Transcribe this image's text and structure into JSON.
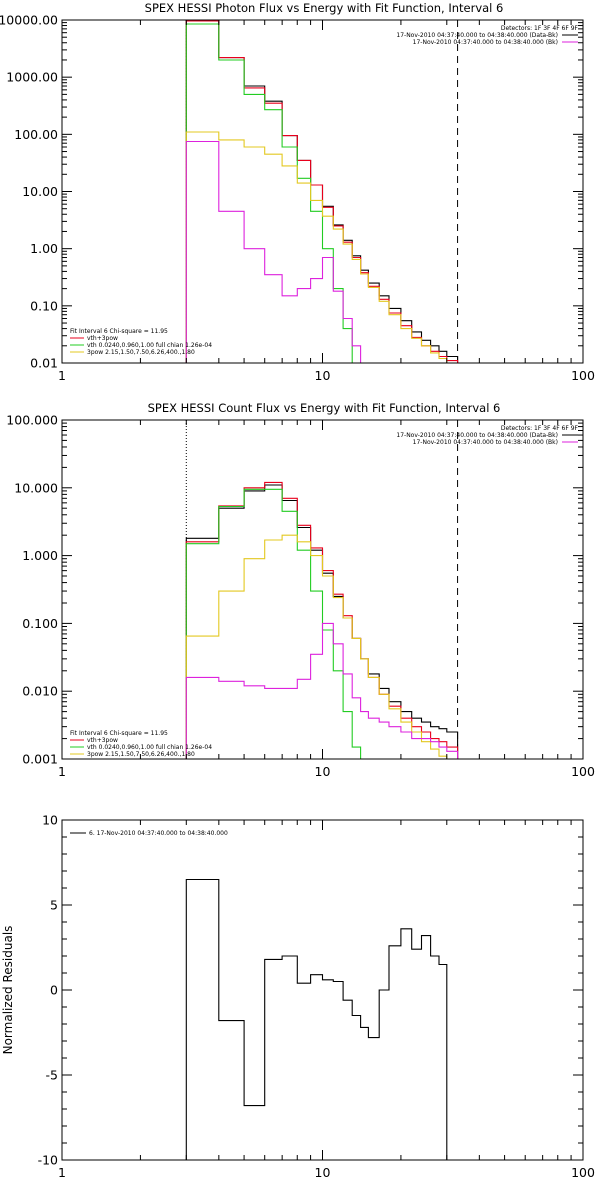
{
  "chart_data": [
    {
      "type": "line",
      "title": "SPEX HESSI Photon Flux vs Energy with Fit Function, Interval 6",
      "xscale": "log",
      "yscale": "log",
      "xlim": [
        1,
        100
      ],
      "ylim": [
        0.01,
        10000
      ],
      "xticks": [
        "1",
        "10",
        "100"
      ],
      "yticks": [
        "0.01",
        "0.10",
        "1.00",
        "10.00",
        "100.00",
        "1000.00",
        "10000.00"
      ],
      "edges": [
        3,
        4,
        5,
        6,
        7,
        8,
        9,
        10,
        11,
        12,
        13,
        14,
        15,
        16.5,
        18,
        20,
        22,
        24,
        26,
        28,
        30,
        33
      ],
      "legend_top": [
        "Detectors: 1F 3F 4F 6F 9F",
        "17-Nov-2010 04:37:40.000 to 04:38:40.000 (Data-Bk)",
        "17-Nov-2010 04:37:40.000 to 04:38:40.000 (Bk)"
      ],
      "legend_bottom": [
        "Fit Interval 6   Chi-square = 11.95",
        "vth+3pow",
        "vth 0.0240,0.960,1.00  full chian 1.26e-04",
        "3pow 2.15,1.50,7.50,6.26,400.,1.80"
      ],
      "vlines": {
        "dotted": 3,
        "dashed": 33
      },
      "series": [
        {
          "name": "17-Nov-2010 04:37:40.000 to 04:38:40.000 (Data-Bk)",
          "color": "#000000",
          "values": [
            10000,
            2200,
            700,
            380,
            95,
            35,
            13,
            5.5,
            2.6,
            1.4,
            0.75,
            0.42,
            0.25,
            0.15,
            0.09,
            0.055,
            0.035,
            0.025,
            0.02,
            0.016,
            0.013
          ]
        },
        {
          "name": "vth+3pow",
          "color": "#e8001c",
          "values": [
            9600,
            2200,
            650,
            350,
            95,
            35,
            13,
            5.3,
            2.5,
            1.3,
            0.7,
            0.38,
            0.22,
            0.13,
            0.075,
            0.045,
            0.028,
            0.02,
            0.016,
            0.013,
            0.011
          ]
        },
        {
          "name": "vth 0.0240,0.960,1.00  full chian 1.26e-04",
          "color": "#22cc22",
          "values": [
            8500,
            2000,
            500,
            270,
            60,
            17,
            4.5,
            1.0,
            0.2,
            0.04,
            0.01,
            null,
            null,
            null,
            null,
            null,
            null,
            null,
            null,
            null,
            null
          ]
        },
        {
          "name": "3pow 2.15,1.50,7.50,6.26,400.,1.80",
          "color": "#e3c820",
          "values": [
            110,
            80,
            60,
            45,
            28,
            14,
            7,
            3.7,
            2.2,
            1.2,
            0.65,
            0.36,
            0.21,
            0.12,
            0.07,
            0.04,
            0.027,
            0.02,
            0.015,
            0.012,
            0.009
          ]
        },
        {
          "name": "17-Nov-2010 04:37:40.000 to 04:38:40.000 (Bk)",
          "color": "#dd22dd",
          "values": [
            75,
            4.5,
            1.0,
            0.35,
            0.15,
            0.2,
            0.3,
            0.7,
            0.18,
            0.06,
            0.02,
            0.01,
            null,
            null,
            null,
            null,
            null,
            null,
            null,
            null,
            null
          ]
        }
      ]
    },
    {
      "type": "line",
      "title": "SPEX HESSI Count Flux vs Energy with Fit Function, Interval 6",
      "xscale": "log",
      "yscale": "log",
      "xlim": [
        1,
        100
      ],
      "ylim": [
        0.001,
        100
      ],
      "xticks": [
        "1",
        "10",
        "100"
      ],
      "yticks": [
        "0.001",
        "0.010",
        "0.100",
        "1.000",
        "10.000",
        "100.000"
      ],
      "edges": [
        3,
        4,
        5,
        6,
        7,
        8,
        9,
        10,
        11,
        12,
        13,
        14,
        15,
        16.5,
        18,
        20,
        22,
        24,
        26,
        28,
        30,
        33
      ],
      "legend_top": [
        "Detectors: 1F 3F 4F 6F 9F",
        "17-Nov-2010 04:37:40.000 to 04:38:40.000 (Data-Bk)",
        "17-Nov-2010 04:37:40.000 to 04:38:40.000 (Bk)"
      ],
      "legend_bottom": [
        "Fit Interval 6   Chi-square = 11.95",
        "vth+3pow",
        "vth 0.0240,0.960,1.00  full chian 1.26e-04",
        "3pow 2.15,1.50,7.50,6.26,400.,1.80"
      ],
      "vlines": {
        "dotted": 3,
        "dashed": 33
      },
      "series": [
        {
          "name": "17-Nov-2010 04:37:40.000 to 04:38:40.000 (Data-Bk)",
          "color": "#000000",
          "values": [
            1.8,
            5.0,
            9.0,
            11.0,
            6.5,
            2.6,
            1.2,
            0.55,
            0.25,
            0.12,
            0.06,
            0.03,
            0.018,
            0.011,
            0.007,
            0.005,
            0.004,
            0.0035,
            0.003,
            0.0028,
            0.0025
          ]
        },
        {
          "name": "vth+3pow",
          "color": "#e8001c",
          "values": [
            1.6,
            5.4,
            10.0,
            12.0,
            7.0,
            2.8,
            1.3,
            0.6,
            0.27,
            0.13,
            0.06,
            0.03,
            0.016,
            0.009,
            0.006,
            0.004,
            0.003,
            0.0025,
            0.002,
            0.0018,
            0.0015
          ]
        },
        {
          "name": "vth 0.0240,0.960,1.00  full chian 1.26e-04",
          "color": "#22cc22",
          "values": [
            1.5,
            5.3,
            9.5,
            9.5,
            4.5,
            1.2,
            0.3,
            0.08,
            0.02,
            0.005,
            0.0015,
            null,
            null,
            null,
            null,
            null,
            null,
            null,
            null,
            null,
            null
          ]
        },
        {
          "name": "3pow 2.15,1.50,7.50,6.26,400.,1.80",
          "color": "#e3c820",
          "values": [
            0.065,
            0.3,
            0.9,
            1.7,
            2.0,
            1.6,
            1.0,
            0.5,
            0.24,
            0.12,
            0.06,
            0.03,
            0.016,
            0.009,
            0.0055,
            0.0035,
            0.0025,
            0.0018,
            0.0014,
            0.0011,
            0.001
          ]
        },
        {
          "name": "17-Nov-2010 04:37:40.000 to 04:38:40.000 (Bk)",
          "color": "#dd22dd",
          "values": [
            0.016,
            0.014,
            0.012,
            0.011,
            0.011,
            0.015,
            0.035,
            0.1,
            0.05,
            0.018,
            0.008,
            0.005,
            0.004,
            0.0035,
            0.003,
            0.0025,
            0.002,
            0.002,
            0.0018,
            0.0015,
            0.0013
          ]
        }
      ]
    },
    {
      "type": "line",
      "title": "",
      "xscale": "log",
      "yscale": "linear",
      "xlim": [
        1,
        100
      ],
      "ylim": [
        -10,
        10
      ],
      "xticks": [
        "1",
        "10",
        "100"
      ],
      "yticks": [
        "-10",
        "-5",
        "0",
        "5",
        "10"
      ],
      "ylabel": "Normalized Residuals",
      "legend": [
        "6. 17-Nov-2010 04:37:40.000 to 04:38:40.000"
      ],
      "edges": [
        3,
        4,
        5,
        6,
        7,
        8,
        9,
        10,
        11,
        12,
        13,
        14,
        15,
        16.5,
        18,
        20,
        22,
        24,
        26,
        28,
        30,
        33
      ],
      "series": [
        {
          "name": "6. 17-Nov-2010 04:37:40.000 to 04:38:40.000",
          "color": "#000000",
          "values": [
            6.5,
            -1.8,
            -6.8,
            1.8,
            2.0,
            0.4,
            0.9,
            0.6,
            0.5,
            -0.6,
            -1.5,
            -2.2,
            -2.8,
            0.0,
            2.6,
            3.6,
            2.4,
            3.2,
            2.0,
            1.5,
            -10
          ]
        }
      ]
    }
  ]
}
